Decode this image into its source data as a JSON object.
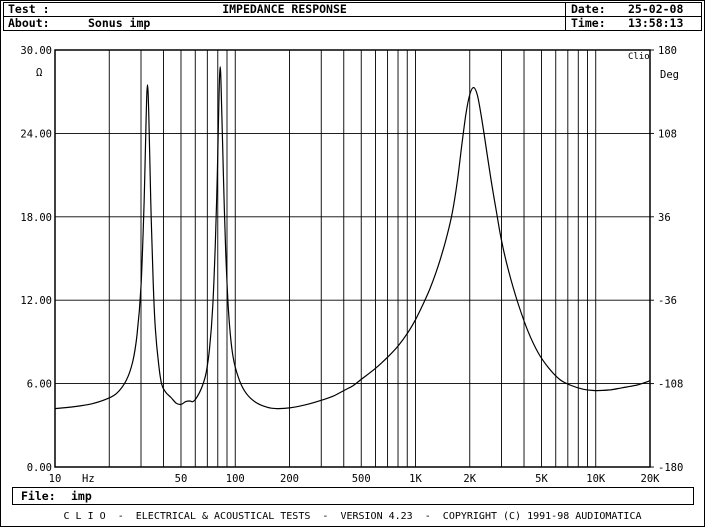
{
  "header": {
    "test_label": "Test :",
    "title": "IMPEDANCE RESPONSE",
    "date_label": "Date:",
    "date_value": "25-02-08",
    "about_label": "About:",
    "about_value": "Sonus imp",
    "time_label": "Time:",
    "time_value": "13:58:13"
  },
  "file": {
    "label": "File:",
    "value": "imp"
  },
  "footer": {
    "text": "C L I O  -  ELECTRICAL & ACOUSTICAL TESTS  -  VERSION 4.23  -  COPYRIGHT (C) 1991-98 AUDIOMATICA"
  },
  "chart_data": {
    "type": "line",
    "title": "IMPEDANCE RESPONSE",
    "brand": "Clio",
    "xlabel": "Hz",
    "x_scale": "log",
    "xlim": [
      10,
      20000
    ],
    "x_tick_labels": [
      {
        "value": 10,
        "label": "10"
      },
      {
        "value": 50,
        "label": "50"
      },
      {
        "value": 100,
        "label": "100"
      },
      {
        "value": 200,
        "label": "200"
      },
      {
        "value": 500,
        "label": "500"
      },
      {
        "value": 1000,
        "label": "1K"
      },
      {
        "value": 2000,
        "label": "2K"
      },
      {
        "value": 5000,
        "label": "5K"
      },
      {
        "value": 10000,
        "label": "10K"
      },
      {
        "value": 20000,
        "label": "20K"
      }
    ],
    "y_left": {
      "unit": "Ω",
      "lim": [
        0,
        30
      ],
      "ticks": [
        {
          "value": 0,
          "label": "0.00"
        },
        {
          "value": 6,
          "label": "6.00"
        },
        {
          "value": 12,
          "label": "12.00"
        },
        {
          "value": 18,
          "label": "18.00"
        },
        {
          "value": 24,
          "label": "24.00"
        },
        {
          "value": 30,
          "label": "30.00"
        }
      ]
    },
    "y_right": {
      "unit": "Deg",
      "lim": [
        -180,
        180
      ],
      "ticks": [
        {
          "value": -180,
          "label": "-180"
        },
        {
          "value": -108,
          "label": "-108"
        },
        {
          "value": -36,
          "label": "-36"
        },
        {
          "value": 36,
          "label": "36"
        },
        {
          "value": 108,
          "label": "108"
        },
        {
          "value": 180,
          "label": "180"
        }
      ]
    },
    "grid": true,
    "series": [
      {
        "name": "",
        "color": "#000000",
        "points": [
          [
            10,
            4.2
          ],
          [
            13,
            4.35
          ],
          [
            16,
            4.55
          ],
          [
            19,
            4.85
          ],
          [
            22,
            5.3
          ],
          [
            25,
            6.3
          ],
          [
            27,
            7.6
          ],
          [
            28.5,
            9.5
          ],
          [
            30,
            13.0
          ],
          [
            31.2,
            19.0
          ],
          [
            32,
            25.0
          ],
          [
            32.6,
            27.5
          ],
          [
            33.2,
            25.0
          ],
          [
            34,
            19.0
          ],
          [
            35,
            13.5
          ],
          [
            36,
            10.0
          ],
          [
            37.5,
            7.5
          ],
          [
            39,
            6.0
          ],
          [
            41,
            5.4
          ],
          [
            44,
            5.0
          ],
          [
            47,
            4.6
          ],
          [
            50,
            4.5
          ],
          [
            53,
            4.7
          ],
          [
            56,
            4.75
          ],
          [
            58,
            4.7
          ],
          [
            60,
            4.85
          ],
          [
            63,
            5.3
          ],
          [
            66,
            5.9
          ],
          [
            69,
            6.8
          ],
          [
            72,
            8.5
          ],
          [
            75,
            11.5
          ],
          [
            77.5,
            16.0
          ],
          [
            79.5,
            21.0
          ],
          [
            81,
            26.0
          ],
          [
            82.5,
            28.8
          ],
          [
            84,
            26.0
          ],
          [
            86,
            21.0
          ],
          [
            88.5,
            15.5
          ],
          [
            92,
            11.0
          ],
          [
            97,
            8.0
          ],
          [
            105,
            6.3
          ],
          [
            115,
            5.3
          ],
          [
            130,
            4.65
          ],
          [
            150,
            4.3
          ],
          [
            170,
            4.2
          ],
          [
            200,
            4.25
          ],
          [
            250,
            4.5
          ],
          [
            300,
            4.8
          ],
          [
            350,
            5.1
          ],
          [
            400,
            5.5
          ],
          [
            450,
            5.85
          ],
          [
            500,
            6.3
          ],
          [
            600,
            7.1
          ],
          [
            700,
            7.9
          ],
          [
            800,
            8.7
          ],
          [
            900,
            9.6
          ],
          [
            1000,
            10.6
          ],
          [
            1100,
            11.7
          ],
          [
            1200,
            12.8
          ],
          [
            1300,
            14.0
          ],
          [
            1400,
            15.3
          ],
          [
            1500,
            16.7
          ],
          [
            1600,
            18.3
          ],
          [
            1700,
            20.4
          ],
          [
            1800,
            23.0
          ],
          [
            1900,
            25.3
          ],
          [
            2000,
            26.8
          ],
          [
            2100,
            27.3
          ],
          [
            2200,
            26.8
          ],
          [
            2300,
            25.5
          ],
          [
            2400,
            24.0
          ],
          [
            2600,
            21.0
          ],
          [
            2800,
            18.5
          ],
          [
            3000,
            16.3
          ],
          [
            3300,
            14.0
          ],
          [
            3700,
            11.8
          ],
          [
            4200,
            9.8
          ],
          [
            4800,
            8.2
          ],
          [
            5500,
            7.1
          ],
          [
            6300,
            6.3
          ],
          [
            7200,
            5.9
          ],
          [
            8500,
            5.6
          ],
          [
            10000,
            5.5
          ],
          [
            12000,
            5.55
          ],
          [
            14000,
            5.7
          ],
          [
            17000,
            5.9
          ],
          [
            20000,
            6.2
          ]
        ]
      }
    ]
  }
}
